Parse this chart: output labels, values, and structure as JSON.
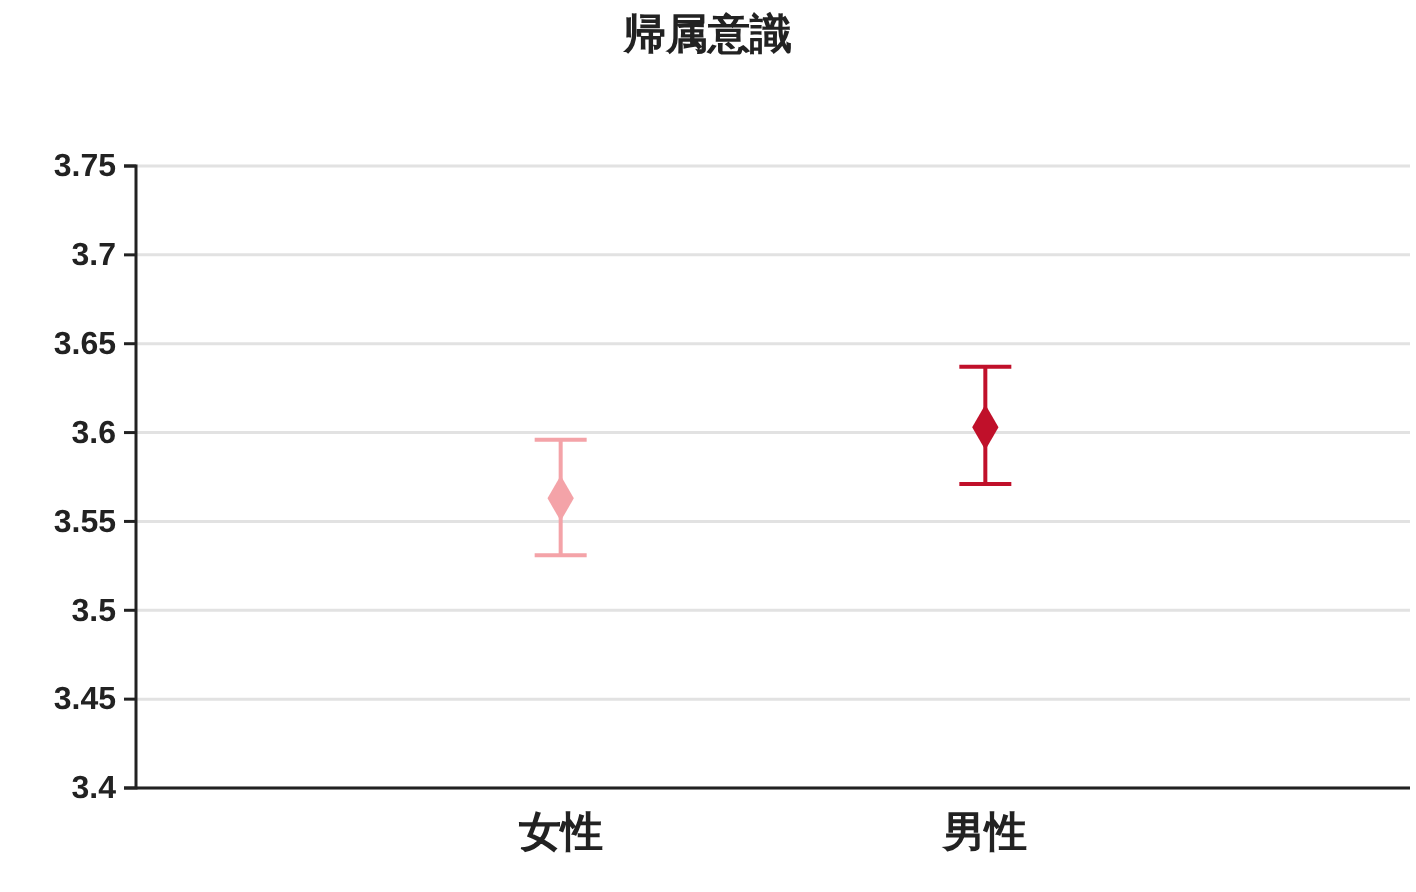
{
  "chart_data": {
    "type": "scatter",
    "title": "帰属意識",
    "categories": [
      "女性",
      "男性"
    ],
    "values": [
      3.563,
      3.603
    ],
    "colors": [
      "#f4a3a8",
      "#c0102a"
    ],
    "errors": [
      [
        3.531,
        3.596
      ],
      [
        3.571,
        3.637
      ]
    ],
    "ylim": [
      3.4,
      3.75
    ],
    "yticks": [
      3.4,
      3.45,
      3.5,
      3.55,
      3.6,
      3.65,
      3.7,
      3.75
    ],
    "grid": "y",
    "marker": "diamond"
  }
}
